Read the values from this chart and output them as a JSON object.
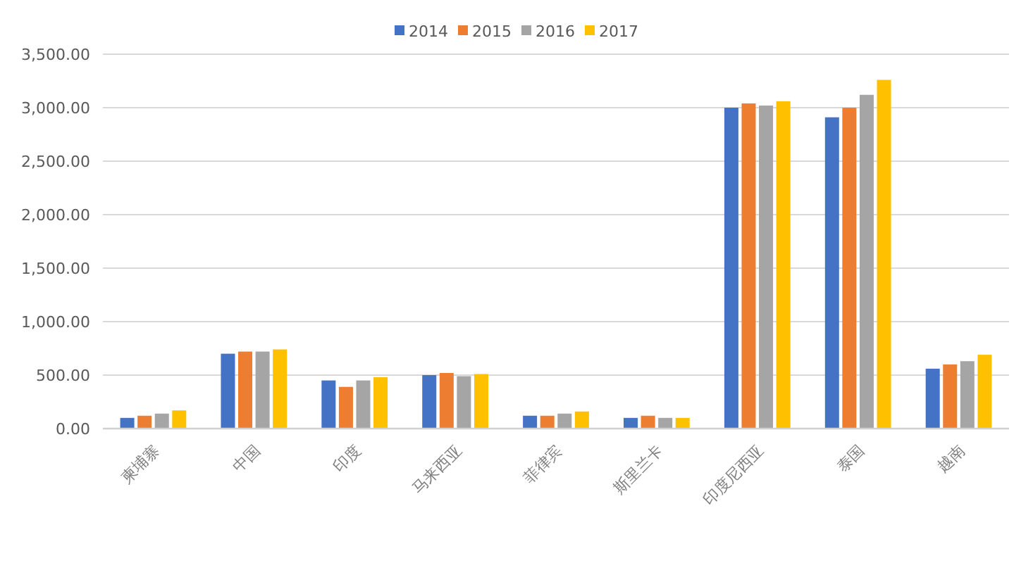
{
  "chart_data": {
    "type": "bar",
    "categories": [
      "柬埔寨",
      "中国",
      "印度",
      "马来西亚",
      "菲律宾",
      "斯里兰卡",
      "印度尼西亚",
      "泰国",
      "越南"
    ],
    "series": [
      {
        "name": "2014",
        "color": "#4472c4",
        "values": [
          100,
          700,
          450,
          500,
          120,
          100,
          3000,
          2910,
          560
        ]
      },
      {
        "name": "2015",
        "color": "#ed7d31",
        "values": [
          120,
          720,
          390,
          520,
          120,
          120,
          3040,
          3000,
          600
        ]
      },
      {
        "name": "2016",
        "color": "#a5a5a5",
        "values": [
          140,
          720,
          450,
          490,
          140,
          100,
          3020,
          3120,
          630
        ]
      },
      {
        "name": "2017",
        "color": "#ffc000",
        "values": [
          170,
          740,
          480,
          510,
          160,
          100,
          3060,
          3260,
          690
        ]
      }
    ],
    "ylim": [
      0,
      3500
    ],
    "yticks": [
      {
        "value": 0,
        "label": "0.00"
      },
      {
        "value": 500,
        "label": "500.00"
      },
      {
        "value": 1000,
        "label": "1,000.00"
      },
      {
        "value": 1500,
        "label": "1,500.00"
      },
      {
        "value": 2000,
        "label": "2,000.00"
      },
      {
        "value": 2500,
        "label": "2,500.00"
      },
      {
        "value": 3000,
        "label": "3,000.00"
      },
      {
        "value": 3500,
        "label": "3,500.00"
      }
    ],
    "grid": "y",
    "legend": "top"
  }
}
